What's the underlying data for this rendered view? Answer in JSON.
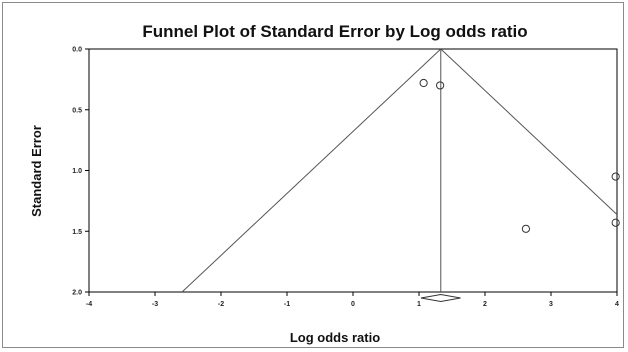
{
  "chart_data": {
    "type": "scatter",
    "title": "Funnel Plot of Standard Error by Log odds ratio",
    "xlabel": "Log odds ratio",
    "ylabel": "Standard Error",
    "xlim": [
      -4,
      4
    ],
    "ylim": [
      0,
      2
    ],
    "y_inverted": true,
    "x_ticks": [
      -4,
      -3,
      -2,
      -1,
      0,
      1,
      2,
      3,
      4
    ],
    "x_tick_labels": [
      "-4",
      "-3",
      "-2",
      "-1",
      "0",
      "1",
      "2",
      "3",
      "4"
    ],
    "y_ticks": [
      0,
      0.5,
      1,
      1.5,
      2
    ],
    "y_tick_labels": [
      "0.0",
      "0.5",
      "1.0",
      "1.5",
      "2.0"
    ],
    "grid": false,
    "pooled_estimate": 1.33,
    "funnel_limits": {
      "left_at_max_se": -2.59,
      "right_at_max_se": 5.25
    },
    "points": [
      {
        "x": 1.07,
        "y": 0.28
      },
      {
        "x": 1.32,
        "y": 0.3
      },
      {
        "x": 2.62,
        "y": 1.48
      },
      {
        "x": 3.98,
        "y": 1.05
      },
      {
        "x": 3.98,
        "y": 1.43
      }
    ],
    "summary_diamond": {
      "center": 1.33,
      "lower": 1.03,
      "upper": 1.63
    },
    "colors": {
      "axis": "#000000",
      "funnel": "#555555",
      "marker": "#333333"
    }
  }
}
